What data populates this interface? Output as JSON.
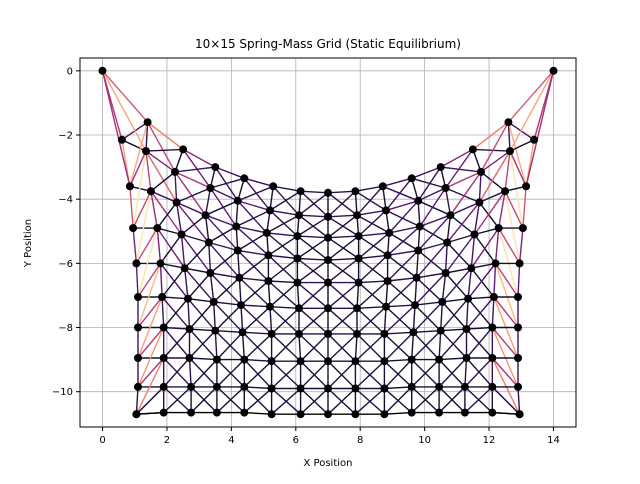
{
  "chart_data": {
    "type": "scatter",
    "title": "10×15 Spring-Mass Grid (Static Equilibrium)",
    "xlabel": "X Position",
    "ylabel": "Y Position",
    "xlim": [
      -0.7,
      14.7
    ],
    "ylim": [
      -11.1,
      0.4
    ],
    "xticks": [
      0,
      2,
      4,
      6,
      8,
      10,
      12,
      14
    ],
    "yticks": [
      0,
      -2,
      -4,
      -6,
      -8,
      -10
    ],
    "tick_labels": {
      "x": [
        "0",
        "2",
        "4",
        "6",
        "8",
        "10",
        "12",
        "14"
      ],
      "y": [
        "0",
        "−2",
        "−4",
        "−6",
        "−8",
        "−10"
      ]
    },
    "grid": true,
    "colormap": "magma",
    "colors": {
      "node": "#000000",
      "grid": "#b0b0b0",
      "axes": "#000000"
    },
    "grid_shape": {
      "rows": 10,
      "cols": 15
    },
    "pinned_nodes": [
      [
        0,
        0
      ],
      [
        14,
        0
      ]
    ],
    "rows": [
      {
        "y": [
          -2.15,
          -1.6,
          -2.45,
          -3.0,
          -3.35,
          -3.6,
          -3.75,
          -3.8,
          -3.75,
          -3.6,
          -3.35,
          -3.0,
          -2.45,
          -1.6,
          -2.15
        ],
        "x": [
          0.6,
          1.4,
          2.5,
          3.5,
          4.4,
          5.3,
          6.15,
          7.0,
          7.85,
          8.7,
          9.6,
          10.5,
          11.5,
          12.6,
          13.4
        ]
      },
      {
        "y": [
          -3.6,
          -2.5,
          -3.15,
          -3.65,
          -4.05,
          -4.35,
          -4.5,
          -4.55,
          -4.5,
          -4.35,
          -4.05,
          -3.65,
          -3.15,
          -2.5,
          -3.6
        ],
        "x": [
          0.85,
          1.35,
          2.25,
          3.35,
          4.2,
          5.2,
          6.1,
          7.0,
          7.9,
          8.8,
          9.8,
          10.65,
          11.75,
          12.65,
          13.15
        ]
      },
      {
        "y": [
          -4.9,
          -3.75,
          -4.1,
          -4.5,
          -4.85,
          -5.05,
          -5.15,
          -5.2,
          -5.15,
          -5.05,
          -4.85,
          -4.5,
          -4.1,
          -3.75,
          -4.9
        ],
        "x": [
          0.95,
          1.5,
          2.3,
          3.2,
          4.15,
          5.1,
          6.05,
          7.0,
          7.95,
          8.9,
          9.85,
          10.8,
          11.7,
          12.5,
          13.05
        ]
      },
      {
        "y": [
          -6.0,
          -4.9,
          -5.1,
          -5.35,
          -5.6,
          -5.75,
          -5.85,
          -5.9,
          -5.85,
          -5.75,
          -5.6,
          -5.35,
          -5.1,
          -4.9,
          -6.0
        ],
        "x": [
          1.05,
          1.7,
          2.45,
          3.3,
          4.2,
          5.15,
          6.05,
          7.0,
          7.95,
          8.85,
          9.8,
          10.7,
          11.55,
          12.3,
          12.95
        ]
      },
      {
        "y": [
          -7.05,
          -6.0,
          -6.15,
          -6.3,
          -6.45,
          -6.55,
          -6.6,
          -6.6,
          -6.6,
          -6.55,
          -6.45,
          -6.3,
          -6.15,
          -6.0,
          -7.05
        ],
        "x": [
          1.1,
          1.8,
          2.55,
          3.35,
          4.25,
          5.15,
          6.05,
          7.0,
          7.95,
          8.85,
          9.75,
          10.65,
          11.45,
          12.2,
          12.9
        ]
      },
      {
        "y": [
          -8.0,
          -7.05,
          -7.1,
          -7.2,
          -7.3,
          -7.35,
          -7.4,
          -7.4,
          -7.4,
          -7.35,
          -7.3,
          -7.2,
          -7.1,
          -7.05,
          -8.0
        ],
        "x": [
          1.1,
          1.85,
          2.65,
          3.45,
          4.3,
          5.2,
          6.1,
          7.0,
          7.9,
          8.8,
          9.7,
          10.55,
          11.35,
          12.15,
          12.9
        ]
      },
      {
        "y": [
          -8.95,
          -8.0,
          -8.05,
          -8.1,
          -8.15,
          -8.2,
          -8.2,
          -8.2,
          -8.2,
          -8.2,
          -8.15,
          -8.1,
          -8.05,
          -8.0,
          -8.95
        ],
        "x": [
          1.1,
          1.9,
          2.7,
          3.5,
          4.35,
          5.25,
          6.1,
          7.0,
          7.9,
          8.75,
          9.65,
          10.5,
          11.3,
          12.1,
          12.9
        ]
      },
      {
        "y": [
          -9.85,
          -8.95,
          -8.95,
          -9.0,
          -9.0,
          -9.05,
          -9.05,
          -9.05,
          -9.05,
          -9.05,
          -9.0,
          -9.0,
          -8.95,
          -8.95,
          -9.85
        ],
        "x": [
          1.1,
          1.9,
          2.7,
          3.55,
          4.4,
          5.25,
          6.15,
          7.0,
          7.85,
          8.75,
          9.6,
          10.45,
          11.3,
          12.1,
          12.9
        ]
      },
      {
        "y": [
          -10.7,
          -9.85,
          -9.85,
          -9.85,
          -9.85,
          -9.9,
          -9.9,
          -9.9,
          -9.9,
          -9.9,
          -9.85,
          -9.85,
          -9.85,
          -9.85,
          -10.7
        ],
        "x": [
          1.05,
          1.9,
          2.75,
          3.55,
          4.4,
          5.25,
          6.15,
          7.0,
          7.85,
          8.75,
          9.6,
          10.45,
          11.25,
          12.1,
          12.95
        ]
      },
      {
        "y": [
          -10.7,
          -10.65,
          -10.65,
          -10.65,
          -10.65,
          -10.7,
          -10.7,
          -10.7,
          -10.7,
          -10.7,
          -10.65,
          -10.65,
          -10.65,
          -10.65,
          -10.7
        ],
        "x": [
          1.05,
          1.9,
          2.75,
          3.55,
          4.4,
          5.25,
          6.15,
          7.0,
          7.85,
          8.75,
          9.6,
          10.45,
          11.25,
          12.1,
          12.95
        ]
      }
    ]
  }
}
